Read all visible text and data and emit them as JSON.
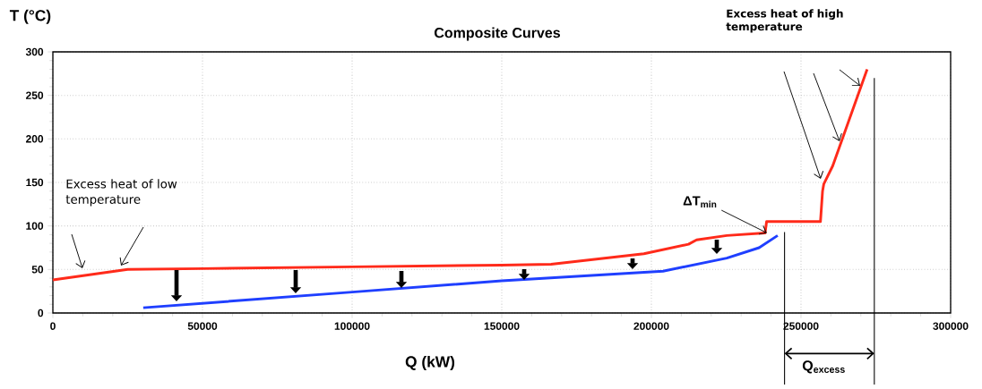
{
  "chart_data": {
    "type": "line",
    "title": "Composite Curves",
    "xlabel": "Q (kW)",
    "ylabel": "T (°C)",
    "series": [
      {
        "color": "#ff2a1a",
        "x": [
          0,
          25000,
          50000,
          100000,
          150000,
          166500,
          197500,
          212400,
          215100,
          225200,
          238000,
          238500,
          256500,
          257200,
          257600,
          260600,
          272100
        ],
        "values": [
          38,
          50,
          51,
          53,
          55,
          56,
          68,
          79,
          84,
          89,
          92,
          105,
          105,
          140,
          148,
          169,
          280
        ]
      },
      {
        "color": "#1f3fff",
        "x": [
          30200,
          100000,
          150000,
          203900,
          225200,
          236000,
          242200
        ],
        "values": [
          6,
          24,
          37,
          48,
          63,
          75,
          89
        ]
      }
    ],
    "xlim": [
      0,
      300000
    ],
    "ylim": [
      0,
      300
    ],
    "xticks": [
      0,
      50000,
      100000,
      150000,
      200000,
      250000,
      300000
    ],
    "yticks": [
      0,
      50,
      100,
      150,
      200,
      250,
      300
    ],
    "grid": true,
    "marker": "none",
    "line_style": "solid",
    "ref_lines": [
      {
        "axis": "x",
        "value": 244500
      },
      {
        "axis": "x",
        "value": 274500
      }
    ],
    "annotations": [
      "Excess heat of low temperature",
      "Excess heat of high temperature",
      {
        "text": "ΔT$_{min}$",
        "x": 238600,
        "y": 92
      },
      "Q$_{excess}$"
    ]
  }
}
